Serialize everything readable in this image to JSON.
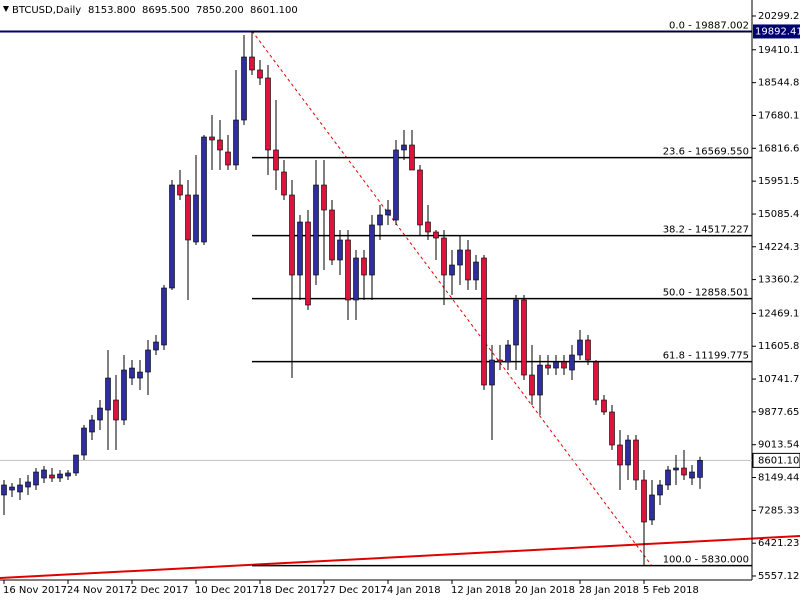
{
  "chart_data": {
    "type": "candlestick",
    "header": {
      "symbol": "BTCUSD,Daily",
      "ohlc": [
        "8153.800",
        "8695.500",
        "7850.200",
        "8601.100"
      ]
    },
    "categories": [
      "16 Nov 2017",
      null,
      null,
      null,
      null,
      null,
      null,
      null,
      "24 Nov 2017",
      null,
      null,
      null,
      null,
      null,
      null,
      null,
      "2 Dec 2017",
      null,
      null,
      null,
      null,
      null,
      null,
      null,
      "10 Dec 2017",
      null,
      null,
      null,
      null,
      null,
      null,
      null,
      "18 Dec 2017",
      null,
      null,
      null,
      null,
      null,
      null,
      null,
      "27 Dec 2017",
      null,
      null,
      null,
      null,
      null,
      null,
      null,
      "4 Jan 2018",
      null,
      null,
      null,
      null,
      null,
      null,
      null,
      "12 Jan 2018",
      null,
      null,
      null,
      null,
      null,
      null,
      null,
      "20 Jan 2018",
      null,
      null,
      null,
      null,
      null,
      null,
      null,
      "28 Jan 2018",
      null,
      null,
      null,
      null,
      null,
      null,
      null,
      "5 Feb 2018",
      null,
      null,
      null,
      null,
      null,
      null,
      null
    ],
    "open": [
      7690,
      7821,
      7769,
      7900,
      7953,
      8137,
      8216,
      8137,
      8190,
      8269,
      8742,
      9348,
      9664,
      9927,
      10190,
      9664,
      10769,
      10769,
      10927,
      11507,
      11638,
      13139,
      15850,
      15587,
      14350,
      14350,
      17114,
      17035,
      16719,
      16377,
      17561,
      19220,
      18878,
      18667,
      16772,
      16193,
      15587,
      13481,
      14876,
      13481,
      15850,
      15192,
      13876,
      14403,
      12823,
      13929,
      13481,
      14798,
      15061,
      14929,
      16772,
      16903,
      16245,
      14876,
      14613,
      14455,
      13481,
      13744,
      14139,
      13350,
      13929,
      10585,
      11243,
      11190,
      11638,
      12823,
      10848,
      10322,
      11111,
      11032,
      11190,
      10980,
      11375,
      11770,
      11190,
      10190,
      9875,
      9006,
      8480,
      9137,
      8084,
      7032,
      7690,
      7953,
      8348,
      8400,
      8137,
      8153.8
    ],
    "high": [
      8084,
      8005,
      8137,
      8216,
      8400,
      8453,
      8400,
      8348,
      8348,
      8742,
      9532,
      9796,
      10190,
      11507,
      10848,
      11375,
      11243,
      11243,
      11770,
      11902,
      13218,
      15982,
      16245,
      15982,
      16640,
      17167,
      17693,
      17561,
      17167,
      18878,
      19799,
      19887,
      19141,
      19009,
      18088,
      16508,
      15982,
      15061,
      15192,
      16508,
      16508,
      15455,
      14666,
      14666,
      14139,
      14139,
      15061,
      15324,
      15455,
      17035,
      17298,
      17298,
      16377,
      15324,
      14666,
      14666,
      14139,
      14534,
      14403,
      14008,
      14008,
      11638,
      11638,
      11770,
      12955,
      12955,
      11638,
      11375,
      11375,
      11375,
      11375,
      11638,
      12033,
      11902,
      11243,
      10322,
      10058,
      9401,
      9269,
      9269,
      8348,
      8084,
      8084,
      8453,
      8742,
      8874,
      8480,
      8695.5
    ],
    "low": [
      7163,
      7637,
      7558,
      7690,
      7821,
      8005,
      8032,
      8032,
      8084,
      8190,
      8611,
      9137,
      9401,
      8874,
      8874,
      9532,
      10585,
      10453,
      10322,
      11375,
      11507,
      13086,
      15455,
      12823,
      14271,
      14271,
      16245,
      16245,
      16245,
      16245,
      17430,
      18746,
      18483,
      16114,
      15719,
      15455,
      10769,
      12823,
      12560,
      13218,
      13613,
      13744,
      13481,
      12296,
      12296,
      12823,
      12823,
      14403,
      14798,
      14798,
      16508,
      16245,
      14534,
      14403,
      13876,
      12691,
      12955,
      13218,
      13086,
      13086,
      10453,
      9137,
      10980,
      10980,
      10980,
      10717,
      10058,
      9796,
      10848,
      10848,
      10848,
      10717,
      11243,
      11111,
      10058,
      9796,
      8874,
      7821,
      8084,
      7821,
      5830,
      6900,
      7426,
      7821,
      7953,
      8084,
      7953,
      7850.2
    ],
    "close": [
      7953,
      7900,
      7953,
      8032,
      8295,
      8348,
      8137,
      8242,
      8269,
      8742,
      9453,
      9664,
      9979,
      10769,
      9664,
      10980,
      11032,
      10927,
      11507,
      11717,
      13139,
      15850,
      15587,
      14403,
      15587,
      17114,
      17035,
      16772,
      16377,
      17561,
      19220,
      18878,
      18667,
      16772,
      16245,
      15587,
      13481,
      14876,
      12691,
      15850,
      15192,
      13876,
      14403,
      12823,
      13929,
      13481,
      14798,
      15061,
      15192,
      16772,
      16903,
      16245,
      14798,
      14613,
      14455,
      13481,
      13744,
      14139,
      13350,
      13823,
      10585,
      11243,
      11190,
      11638,
      12823,
      10848,
      10322,
      11111,
      11032,
      11190,
      11032,
      11375,
      11770,
      11243,
      10190,
      9875,
      9006,
      8480,
      9137,
      8084,
      6979,
      7690,
      7953,
      8348,
      8400,
      8216,
      8295,
      8601.1
    ],
    "colors": {
      "up": "#2e2e9e",
      "down": "#dc143c",
      "wick": "#000000"
    },
    "ylim": [
      5452,
      20720.5
    ],
    "yticks": [
      {
        "value": 20299.28,
        "label": "20299.280"
      },
      {
        "value": 19410.15,
        "label": "19410.150"
      },
      18544.885,
      {
        "value": 17680.12,
        "label": "17680.120"
      },
      16816.675,
      {
        "value": 15951.57,
        "label": "15951.570"
      },
      15085.465,
      {
        "value": 14224.36,
        "label": "14224.360"
      },
      13360.255,
      {
        "value": 12469.15,
        "label": "12469.150"
      },
      {
        "value": 11605.86,
        "label": "11605.860"
      },
      10741.755,
      {
        "value": 9877.65,
        "label": "9877.650"
      },
      9013.545,
      {
        "value": 8149.44,
        "label": "8149.440"
      },
      7285.335,
      {
        "value": 6421.23,
        "label": "6421.230"
      },
      5557.125
    ],
    "fib_levels": [
      {
        "value": 19887.002,
        "label": "0.0 - 19887.002"
      },
      {
        "value": 16569.55,
        "label": "23.6 - 16569.550"
      },
      {
        "value": 14517.227,
        "label": "38.2 - 14517.227"
      },
      {
        "value": 12858.501,
        "label": "50.0 - 12858.501"
      },
      {
        "value": 11199.775,
        "label": "61.8 - 11199.775"
      },
      {
        "value": 5830,
        "label": "100.0 - 5830.000"
      }
    ],
    "high_line": {
      "value": 19892.416,
      "color": "#00006e"
    },
    "price_line": {
      "value": 8601.1,
      "label": "8601.100",
      "color": "#c0c0c0"
    }
  }
}
